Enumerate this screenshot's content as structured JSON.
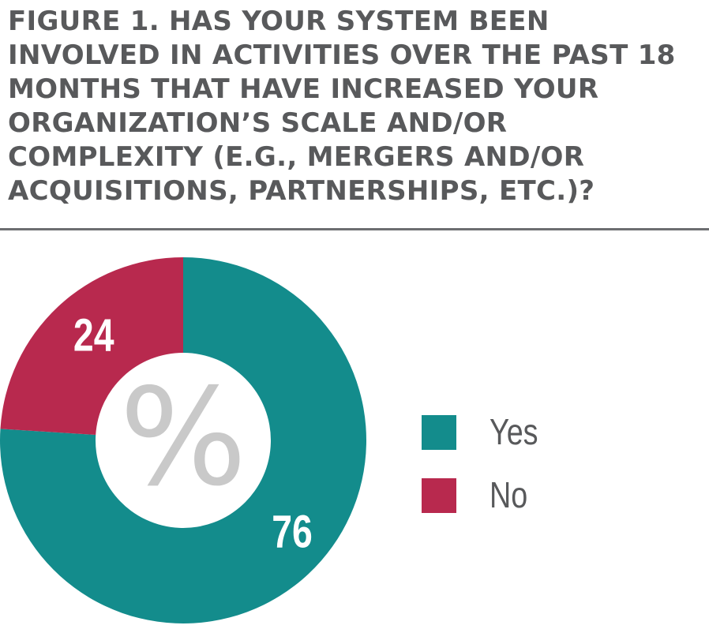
{
  "chart_data": {
    "type": "pie",
    "title": "FIGURE 1. HAS YOUR SYSTEM BEEN INVOLVED IN ACTIVITIES OVER THE PAST 18 MONTHS THAT HAVE INCREASED YOUR ORGANIZATION’S SCALE AND/OR COMPLEXITY (E.G., MERGERS AND/OR ACQUISITIONS, PARTNERSHIPS, ETC.)?",
    "center_label": "%",
    "donut": true,
    "legend_position": "right",
    "slices": [
      {
        "label": "Yes",
        "value": 76,
        "display": "76",
        "color": "#138c8c"
      },
      {
        "label": "No",
        "value": 24,
        "display": "24",
        "color": "#b8294e"
      }
    ]
  }
}
